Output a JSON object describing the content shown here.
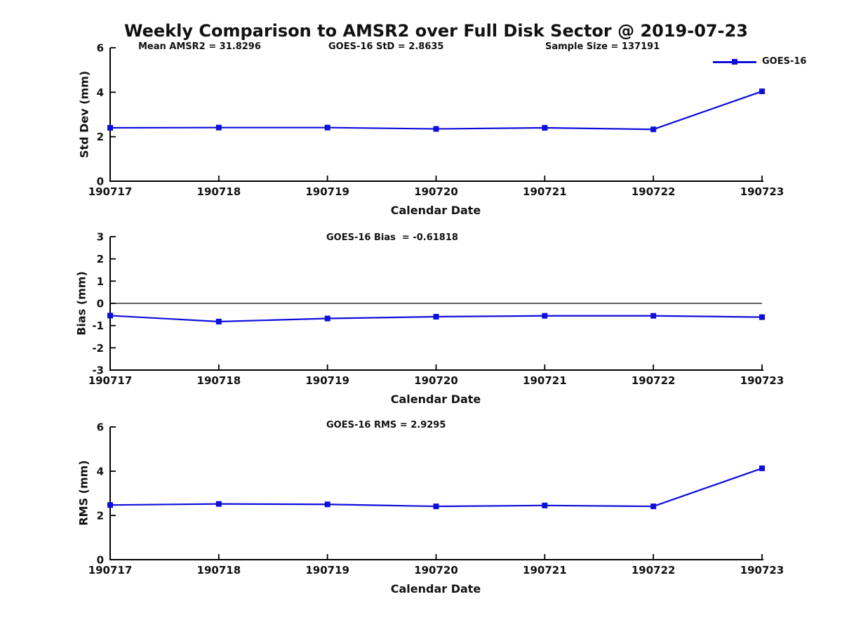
{
  "figure": {
    "title": "Weekly Comparison to AMSR2 over Full Disk Sector @ 2019-07-23",
    "background": "#ffffff"
  },
  "legend": {
    "label": "GOES-16"
  },
  "colors": {
    "series": "#0E0EDC",
    "axis": "#000000",
    "text": "#111111",
    "zero_line": "#000000"
  },
  "chart_data": [
    {
      "type": "line",
      "name": "std-dev-vs-date",
      "x": [
        "190717",
        "190718",
        "190719",
        "190720",
        "190721",
        "190722",
        "190723"
      ],
      "series": [
        {
          "name": "GOES-16",
          "values": [
            2.4,
            2.41,
            2.41,
            2.35,
            2.4,
            2.33,
            4.04
          ]
        }
      ],
      "xlabel": "Calendar Date",
      "ylabel": "Std Dev (mm)",
      "ylim": [
        0,
        6
      ],
      "yticks": [
        0,
        2,
        4,
        6
      ],
      "grid": false,
      "legend_position": "top-right",
      "annotations": [
        "Mean AMSR2 = 31.8296",
        "GOES-16 StD = 2.8635",
        "Sample Size = 137191"
      ]
    },
    {
      "type": "line",
      "name": "bias-vs-date",
      "x": [
        "190717",
        "190718",
        "190719",
        "190720",
        "190721",
        "190722",
        "190723"
      ],
      "series": [
        {
          "name": "GOES-16",
          "values": [
            -0.55,
            -0.82,
            -0.68,
            -0.6,
            -0.56,
            -0.56,
            -0.62
          ]
        }
      ],
      "xlabel": "Calendar Date",
      "ylabel": "Bias (mm)",
      "ylim": [
        -3,
        3
      ],
      "yticks": [
        -3,
        -2,
        -1,
        0,
        1,
        2,
        3
      ],
      "zero_line": true,
      "grid": false,
      "annotations": [
        "GOES-16 Bias  = -0.61818"
      ]
    },
    {
      "type": "line",
      "name": "rms-vs-date",
      "x": [
        "190717",
        "190718",
        "190719",
        "190720",
        "190721",
        "190722",
        "190723"
      ],
      "series": [
        {
          "name": "GOES-16",
          "values": [
            2.47,
            2.52,
            2.5,
            2.41,
            2.45,
            2.41,
            4.13
          ]
        }
      ],
      "xlabel": "Calendar Date",
      "ylabel": "RMS (mm)",
      "ylim": [
        0,
        6
      ],
      "yticks": [
        0,
        2,
        4,
        6
      ],
      "grid": false,
      "annotations": [
        "GOES-16 RMS = 2.9295"
      ]
    }
  ]
}
